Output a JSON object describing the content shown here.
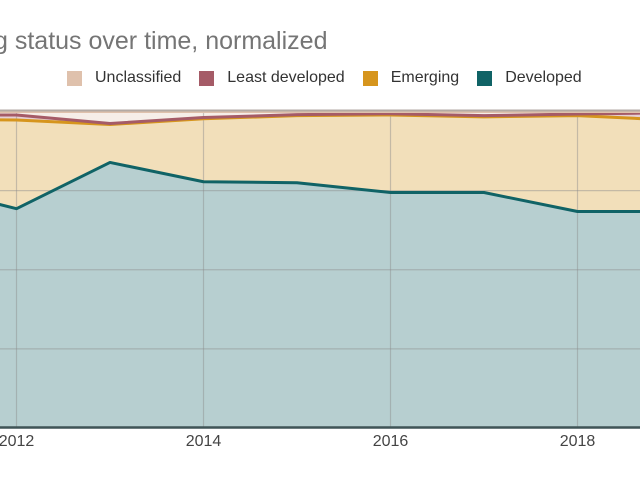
{
  "title": "g status over time, normalized",
  "legend": {
    "items": [
      {
        "label": "Unclassified",
        "color": "#dfc1ac"
      },
      {
        "label": "Least developed",
        "color": "#a55b67"
      },
      {
        "label": "Emerging",
        "color": "#d6951d"
      },
      {
        "label": "Developed",
        "color": "#106366"
      }
    ]
  },
  "x_axis": {
    "tick_labels": [
      "2012",
      "2014",
      "2016",
      "2018"
    ],
    "tick_years": [
      2012,
      2014,
      2016,
      2018
    ]
  },
  "chart_data": {
    "type": "area",
    "stacked": true,
    "normalized": true,
    "title": "g status over time, normalized",
    "xlabel": "",
    "ylabel": "",
    "ylim": [
      0,
      100
    ],
    "grid": {
      "h_percents": [
        25,
        50,
        75
      ],
      "v_years": [
        2012,
        2014,
        2016,
        2018
      ]
    },
    "legend_position": "top",
    "visible_x_range": [
      2011.8,
      2018.7
    ],
    "x": [
      2011,
      2012,
      2013,
      2014,
      2015,
      2016,
      2017,
      2018,
      2019
    ],
    "series": [
      {
        "name": "Developed",
        "line_color": "#106366",
        "fill_color": "#b7cfd0",
        "values": [
          76.7,
          69.3,
          83.9,
          77.8,
          77.5,
          74.4,
          74.4,
          68.4,
          68.4
        ]
      },
      {
        "name": "Emerging",
        "line_color": "#d6951d",
        "fill_color": "#f2dfba",
        "values": [
          20.9,
          28.0,
          12.0,
          19.9,
          21.2,
          24.5,
          23.9,
          30.3,
          28.9
        ]
      },
      {
        "name": "Least developed",
        "line_color": "#a55b67",
        "fill_color": "#e6d0d4",
        "values": [
          1.3,
          1.6,
          0.3,
          0.4,
          0.3,
          0.4,
          0.4,
          0.5,
          2.3
        ]
      },
      {
        "name": "Unclassified",
        "line_color": "#dfc1ac",
        "fill_color": "#f6eee8",
        "values": [
          1.1,
          1.1,
          3.8,
          1.9,
          1.0,
          0.7,
          1.3,
          0.8,
          0.4
        ]
      }
    ]
  },
  "colors": {
    "gridline": "#8c8c8c",
    "top_border": "#b3aaa4",
    "baseline": "#3f5456",
    "title_text": "#757575",
    "axis_text": "#444444",
    "legend_text": "#333333"
  }
}
